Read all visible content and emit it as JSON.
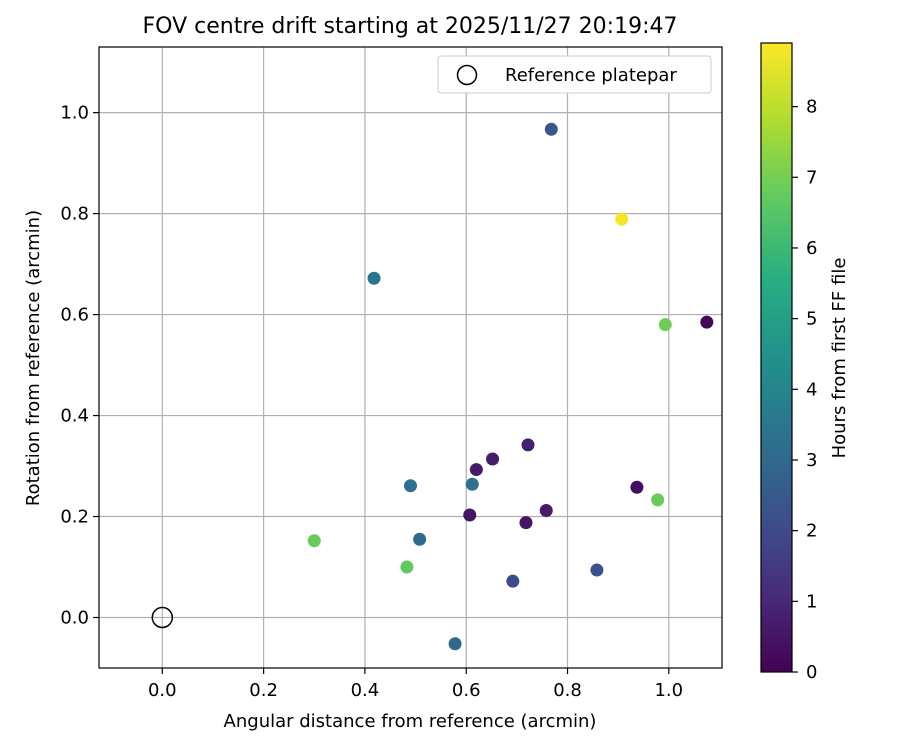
{
  "chart_data": {
    "type": "scatter",
    "title": "FOV centre drift starting at 2025/11/27 20:19:47",
    "xlabel": "Angular distance from reference (arcmin)",
    "ylabel": "Rotation from reference (arcmin)",
    "xlim": [
      -0.125,
      1.105
    ],
    "ylim": [
      -0.1,
      1.13
    ],
    "x_ticks": [
      0.0,
      0.2,
      0.4,
      0.6,
      0.8,
      1.0
    ],
    "x_tick_labels": [
      "0.0",
      "0.2",
      "0.4",
      "0.6",
      "0.8",
      "1.0"
    ],
    "y_ticks": [
      0.0,
      0.2,
      0.4,
      0.6,
      0.8,
      1.0
    ],
    "y_tick_labels": [
      "0.0",
      "0.2",
      "0.4",
      "0.6",
      "0.8",
      "1.0"
    ],
    "grid": true,
    "legend": {
      "position": "top-right",
      "entries": [
        "Reference platepar"
      ]
    },
    "reference_point": {
      "x": 0.0,
      "y": 0.0,
      "label": "Reference platepar"
    },
    "colorbar": {
      "label": "Hours from first FF file",
      "colormap": "viridis",
      "range": [
        0,
        8.9
      ],
      "ticks": [
        0,
        1,
        2,
        3,
        4,
        5,
        6,
        7,
        8
      ],
      "tick_labels": [
        "0",
        "1",
        "2",
        "3",
        "4",
        "5",
        "6",
        "7",
        "8"
      ]
    },
    "points": [
      {
        "x": 0.62,
        "y": 0.293,
        "hours": 0.6
      },
      {
        "x": 0.652,
        "y": 0.314,
        "hours": 0.7
      },
      {
        "x": 0.722,
        "y": 0.342,
        "hours": 0.8
      },
      {
        "x": 0.607,
        "y": 0.203,
        "hours": 0.5
      },
      {
        "x": 0.718,
        "y": 0.188,
        "hours": 0.5
      },
      {
        "x": 0.758,
        "y": 0.212,
        "hours": 0.6
      },
      {
        "x": 0.937,
        "y": 0.258,
        "hours": 0.3
      },
      {
        "x": 1.075,
        "y": 0.585,
        "hours": 0.2
      },
      {
        "x": 0.692,
        "y": 0.072,
        "hours": 2.0
      },
      {
        "x": 0.858,
        "y": 0.094,
        "hours": 2.2
      },
      {
        "x": 0.768,
        "y": 0.967,
        "hours": 2.4
      },
      {
        "x": 0.578,
        "y": -0.052,
        "hours": 3.0
      },
      {
        "x": 0.508,
        "y": 0.155,
        "hours": 3.1
      },
      {
        "x": 0.49,
        "y": 0.261,
        "hours": 3.2
      },
      {
        "x": 0.612,
        "y": 0.264,
        "hours": 3.3
      },
      {
        "x": 0.418,
        "y": 0.672,
        "hours": 3.4
      },
      {
        "x": 0.3,
        "y": 0.152,
        "hours": 6.8
      },
      {
        "x": 0.483,
        "y": 0.1,
        "hours": 6.7
      },
      {
        "x": 0.978,
        "y": 0.233,
        "hours": 6.8
      },
      {
        "x": 0.993,
        "y": 0.58,
        "hours": 6.9
      },
      {
        "x": 0.907,
        "y": 0.789,
        "hours": 8.8
      }
    ]
  }
}
